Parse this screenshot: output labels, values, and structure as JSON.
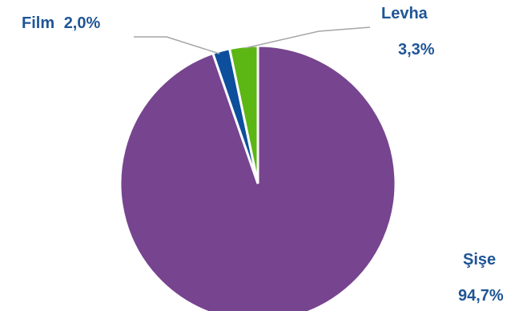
{
  "chart_data": {
    "type": "pie",
    "slices": [
      {
        "name": "Şişe",
        "value": 94.7,
        "value_label": "94,7%",
        "color": "#77448f"
      },
      {
        "name": "Film",
        "value": 2.0,
        "value_label": "2,0%",
        "color": "#0d4f9c"
      },
      {
        "name": "Levha",
        "value": 3.3,
        "value_label": "3,3%",
        "color": "#5cb614"
      }
    ],
    "label_color": "#1f5596",
    "leader_line_color": "#a6a6a6",
    "legend": "none"
  }
}
